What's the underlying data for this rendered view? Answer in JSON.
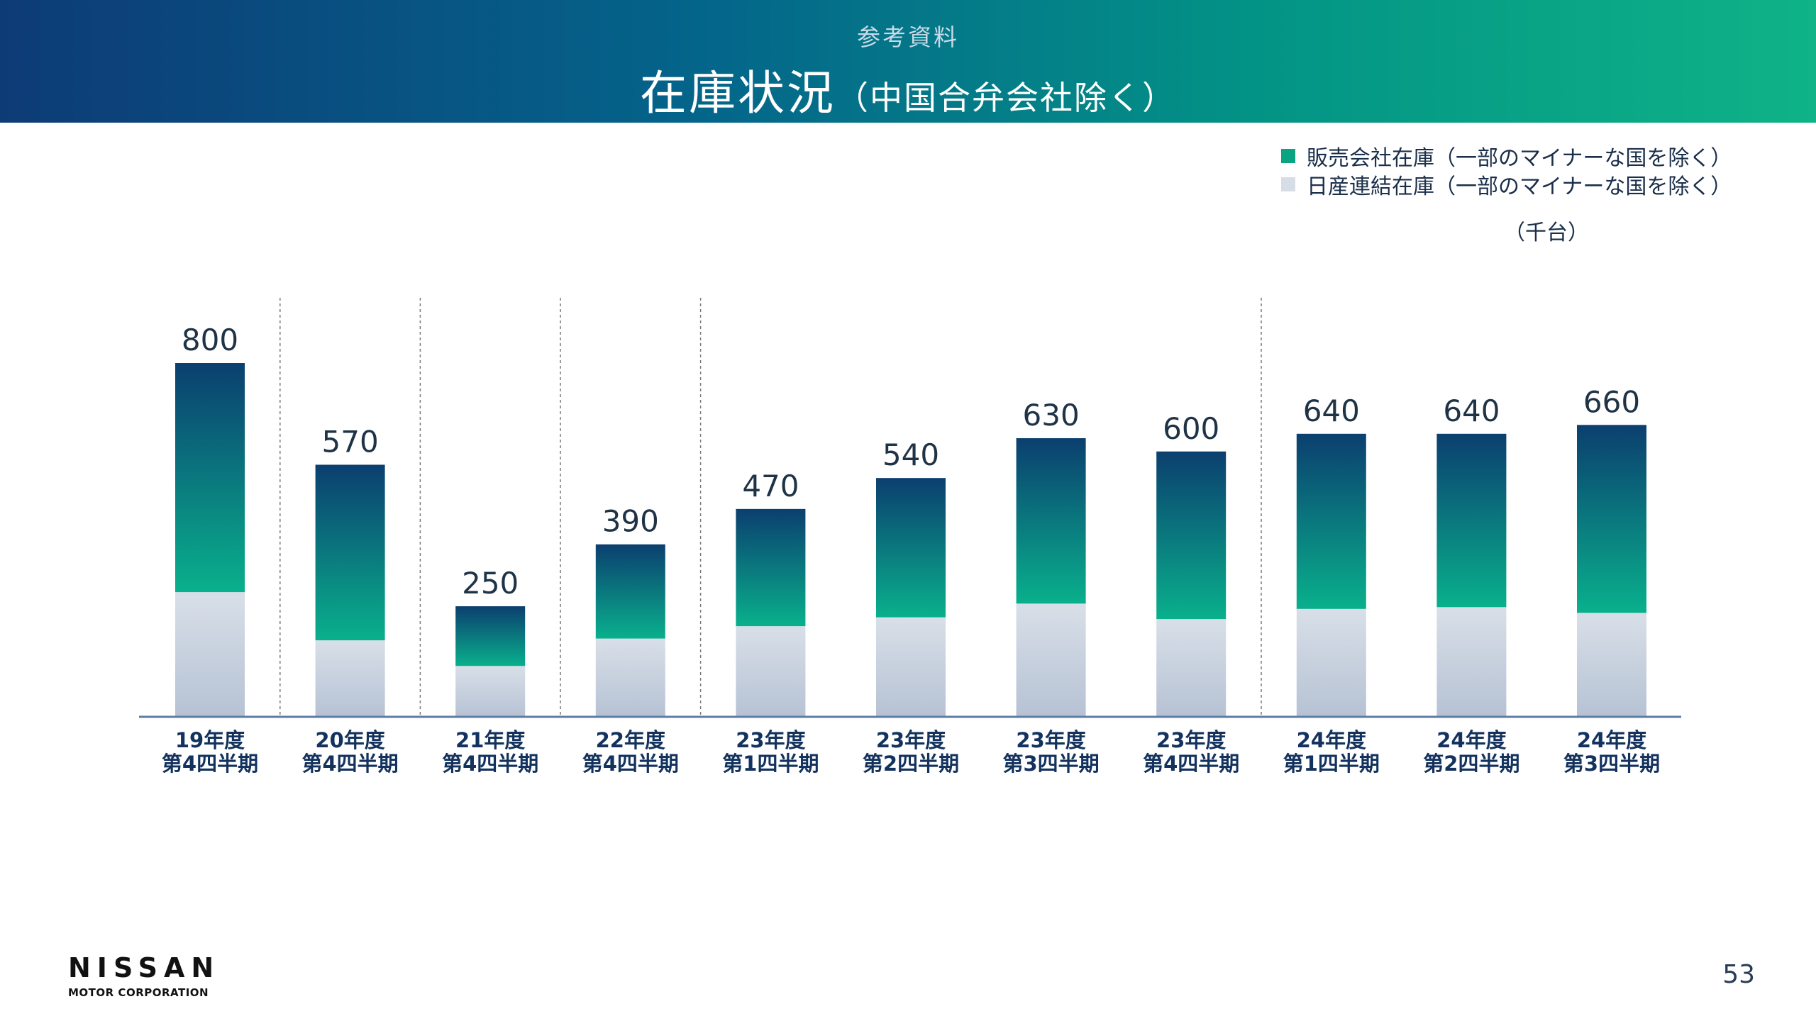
{
  "header": {
    "subtitle": "参考資料",
    "title": "在庫状況",
    "title_paren": "（中国合弁会社除く）"
  },
  "legend": [
    {
      "label": "販売会社在庫（一部のマイナーな国を除く）",
      "color": "#0aa482"
    },
    {
      "label": "日産連結在庫（一部のマイナーな国を除く）",
      "color": "#d6dde6"
    }
  ],
  "unit": "（千台）",
  "chart_data": {
    "type": "bar",
    "stacked": true,
    "categories": [
      [
        "19年度",
        "第4四半期"
      ],
      [
        "20年度",
        "第4四半期"
      ],
      [
        "21年度",
        "第4四半期"
      ],
      [
        "22年度",
        "第4四半期"
      ],
      [
        "23年度",
        "第1四半期"
      ],
      [
        "23年度",
        "第2四半期"
      ],
      [
        "23年度",
        "第3四半期"
      ],
      [
        "23年度",
        "第4四半期"
      ],
      [
        "24年度",
        "第1四半期"
      ],
      [
        "24年度",
        "第2四半期"
      ],
      [
        "24年度",
        "第3四半期"
      ]
    ],
    "series": [
      {
        "name": "日産連結在庫（一部のマイナーな国を除く）",
        "values": [
          282,
          173,
          115,
          177,
          205,
          225,
          256,
          221,
          244,
          248,
          235
        ]
      },
      {
        "name": "販売会社在庫（一部のマイナーな国を除く）",
        "values": [
          518,
          397,
          135,
          213,
          265,
          315,
          374,
          379,
          396,
          392,
          425
        ]
      }
    ],
    "totals": [
      800,
      570,
      250,
      390,
      470,
      540,
      630,
      600,
      640,
      640,
      660
    ],
    "ylim": [
      0,
      800
    ],
    "separators_after": [
      0,
      1,
      2,
      3,
      7
    ],
    "colors": {
      "dealer_top": "#0b3f6f",
      "dealer_bottom": "#09b08c",
      "nissan_top": "#d8dfe8",
      "nissan_bottom": "#b6c2d4",
      "baseline": "#5d7ea2"
    }
  },
  "footer": {
    "logo_word": "NISSAN",
    "logo_sub": "MOTOR CORPORATION",
    "page": "53"
  }
}
